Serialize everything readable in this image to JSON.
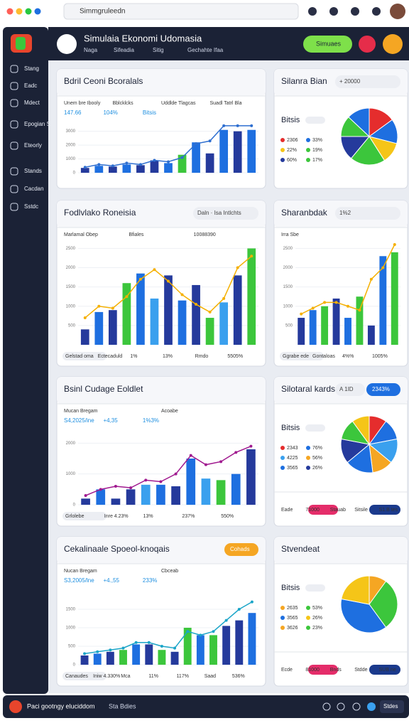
{
  "browser": {
    "search": "Simmgruleedn"
  },
  "sidebar": {
    "items": [
      "Stang",
      "Eadc",
      "Mdect",
      "Epogian Stanin",
      "Eteorly",
      "Stands",
      "Cacdan",
      "Sstdc"
    ]
  },
  "header": {
    "title": "Simulaia Ekonomi Udomasia",
    "nav": [
      "Naga",
      "Sifeadia",
      "Sitig",
      "Gechahte Ifaa"
    ],
    "button": "Simuaes"
  },
  "cards": [
    {
      "title": "Bdril Ceoni Bcoralals",
      "top": [
        "Unem bre Ibooly",
        "Bblcklcks",
        "Uddlde Tlagcas",
        "Suadl Tatrl Bla"
      ],
      "sub": [
        "147.66",
        "104%",
        "Bitsis"
      ],
      "chart": {
        "type": "combo",
        "ylim": [
          0,
          3600
        ],
        "yticks": [
          0,
          1000,
          2000,
          3000
        ],
        "values": [
          350,
          500,
          450,
          600,
          550,
          900,
          700,
          1300,
          2200,
          1400,
          3100,
          3000,
          3100
        ],
        "colors": [
          "#253a9c",
          "#1e6fe0",
          "#253a9c",
          "#1e6fe0",
          "#253a9c",
          "#253a9c",
          "#1e6fe0",
          "#3cc63c",
          "#1e6fe0",
          "#253a9c",
          "#1e6fe0",
          "#253a9c",
          "#1e6fe0"
        ],
        "line_values": [
          400,
          600,
          500,
          700,
          600,
          900,
          800,
          1100,
          2100,
          2300,
          3400,
          3400,
          3400
        ],
        "line_color": "#2f6fd0"
      }
    },
    {
      "title": "Silanra Bian",
      "head": "+ 20000",
      "label": "Bitsis",
      "legend": [
        "2306",
        "33%",
        "22%",
        "19%",
        "60%",
        "17%"
      ],
      "chart": {
        "type": "pie",
        "values": [
          15,
          14,
          12,
          20,
          14,
          12,
          13
        ],
        "colors": [
          "#e52d2d",
          "#1e6fe0",
          "#f5c518",
          "#3cc63c",
          "#253a9c",
          "#3cc63c",
          "#1e6fe0"
        ]
      }
    },
    {
      "title": "Fodlvlako Roneisia",
      "head": "Daln · Isa Intlchts",
      "top": [
        "Marlamal Obep",
        "Bfiales",
        "10088390"
      ],
      "bottom": [
        "Gelstad oma",
        "Ectecaduld",
        "1%",
        "13%",
        "Rmdo",
        "5505%"
      ],
      "chart": {
        "type": "combo",
        "ylim": [
          0,
          2600
        ],
        "yticks": [
          500,
          1000,
          1500,
          2000,
          2500
        ],
        "values": [
          400,
          850,
          900,
          1600,
          1850,
          1200,
          1800,
          1150,
          1550,
          700,
          1100,
          1800,
          2500
        ],
        "colors": [
          "#253a9c",
          "#1e6fe0",
          "#253a9c",
          "#3cc63c",
          "#1e6fe0",
          "#3aa0ee",
          "#253a9c",
          "#1e6fe0",
          "#253a9c",
          "#3cc63c",
          "#3aa0ee",
          "#253a9c",
          "#3cc63c"
        ],
        "line_values": [
          700,
          1000,
          950,
          1250,
          1700,
          1950,
          1650,
          1300,
          1050,
          850,
          1200,
          2000,
          2300
        ],
        "line_color": "#f5b000"
      }
    },
    {
      "title": "Sharanbdak",
      "head": "1%2",
      "top": [
        "Irra Sbe"
      ],
      "bottom": [
        "Ggrabe ede",
        "Gontaloas",
        "4%%",
        "1005%"
      ],
      "chart": {
        "type": "combo",
        "ylim": [
          0,
          2600
        ],
        "yticks": [
          500,
          1000,
          1500,
          2000,
          2500
        ],
        "values": [
          700,
          900,
          1000,
          1200,
          700,
          1250,
          500,
          2300,
          2400
        ],
        "colors": [
          "#253a9c",
          "#1e6fe0",
          "#3cc63c",
          "#253a9c",
          "#1e6fe0",
          "#3cc63c",
          "#253a9c",
          "#1e6fe0",
          "#3cc63c"
        ],
        "line_values": [
          800,
          950,
          1100,
          1100,
          1000,
          900,
          1700,
          2000,
          2600
        ],
        "line_color": "#f5b000"
      }
    },
    {
      "title": "Bsinl Cudage Eoldlet",
      "top": [
        "Mucan Bregam",
        "Acoabe"
      ],
      "sub": [
        "S4,2025/ine",
        "+4,35",
        "1%3%"
      ],
      "bottom": [
        "Grlolebe",
        "Inre 4.23%",
        "13%",
        "237%",
        "550%"
      ],
      "chart": {
        "type": "combo",
        "ylim": [
          0,
          2400
        ],
        "yticks": [
          0,
          1000,
          2000
        ],
        "values": [
          200,
          500,
          200,
          500,
          650,
          650,
          600,
          1500,
          850,
          800,
          1000,
          1800
        ],
        "colors": [
          "#253a9c",
          "#1e6fe0",
          "#253a9c",
          "#253a9c",
          "#3aa0ee",
          "#1e6fe0",
          "#253a9c",
          "#1e6fe0",
          "#3aa0ee",
          "#3cc63c",
          "#1e6fe0",
          "#253a9c"
        ],
        "line_values": [
          300,
          500,
          600,
          550,
          800,
          750,
          1000,
          1600,
          1300,
          1400,
          1700,
          1900
        ],
        "line_color": "#a0198f"
      }
    },
    {
      "title": "Silotaral kards",
      "head": "A 1ID",
      "button": "2343%",
      "label": "Bitsis",
      "legend": [
        "2343",
        "76%",
        "4225",
        "56%",
        "3565",
        "26%"
      ],
      "bottom": [
        "Eade",
        "71000",
        "Stauab",
        "Sitsile",
        "S1.B tes"
      ],
      "chart": {
        "type": "pie",
        "values": [
          10,
          12,
          14,
          12,
          16,
          14,
          12,
          10
        ],
        "colors": [
          "#e52d2d",
          "#1e6fe0",
          "#3aa0ee",
          "#f5a623",
          "#1e6fe0",
          "#253a9c",
          "#3cc63c",
          "#f5c518"
        ]
      }
    },
    {
      "title": "Cekalinaale Spoeol-knoqais",
      "button": "Cohads",
      "top": [
        "Nucan Bregam",
        "Cbceab"
      ],
      "sub": [
        "S3,2005/lne",
        "+4.,55",
        "233%"
      ],
      "bottom": [
        "Canaudes",
        "Iniw 4.330%",
        "Mca",
        "11%",
        "117%",
        "Saad",
        "536%"
      ],
      "chart": {
        "type": "combo",
        "ylim": [
          0,
          2000
        ],
        "yticks": [
          0,
          500,
          1000,
          1500
        ],
        "values": [
          250,
          300,
          350,
          400,
          550,
          550,
          400,
          350,
          1000,
          800,
          800,
          1050,
          1200,
          1400
        ],
        "colors": [
          "#253a9c",
          "#1e6fe0",
          "#253a9c",
          "#3cc63c",
          "#1e6fe0",
          "#253a9c",
          "#3cc63c",
          "#253a9c",
          "#3cc63c",
          "#1e6fe0",
          "#3cc63c",
          "#253a9c",
          "#253a9c",
          "#1e6fe0"
        ],
        "line_values": [
          300,
          350,
          400,
          450,
          600,
          600,
          500,
          450,
          900,
          800,
          900,
          1200,
          1500,
          1700
        ],
        "line_color": "#1aa5c8"
      }
    },
    {
      "title": "Stvendeat",
      "label": "Bitsis",
      "legend": [
        "2635",
        "53%",
        "3565",
        "26%",
        "3626",
        "23%"
      ],
      "bottom": [
        "Ecde",
        "81000",
        "Bnds",
        "Stdde",
        "SUB ne"
      ],
      "chart": {
        "type": "pie",
        "values": [
          10,
          30,
          38,
          22
        ],
        "colors": [
          "#f5a623",
          "#3cc63c",
          "#1e6fe0",
          "#f5c518"
        ]
      }
    }
  ],
  "footer": {
    "text": "Paci gootngy eluciddom",
    "right": "Sta Bdies",
    "button": "Stdes"
  }
}
